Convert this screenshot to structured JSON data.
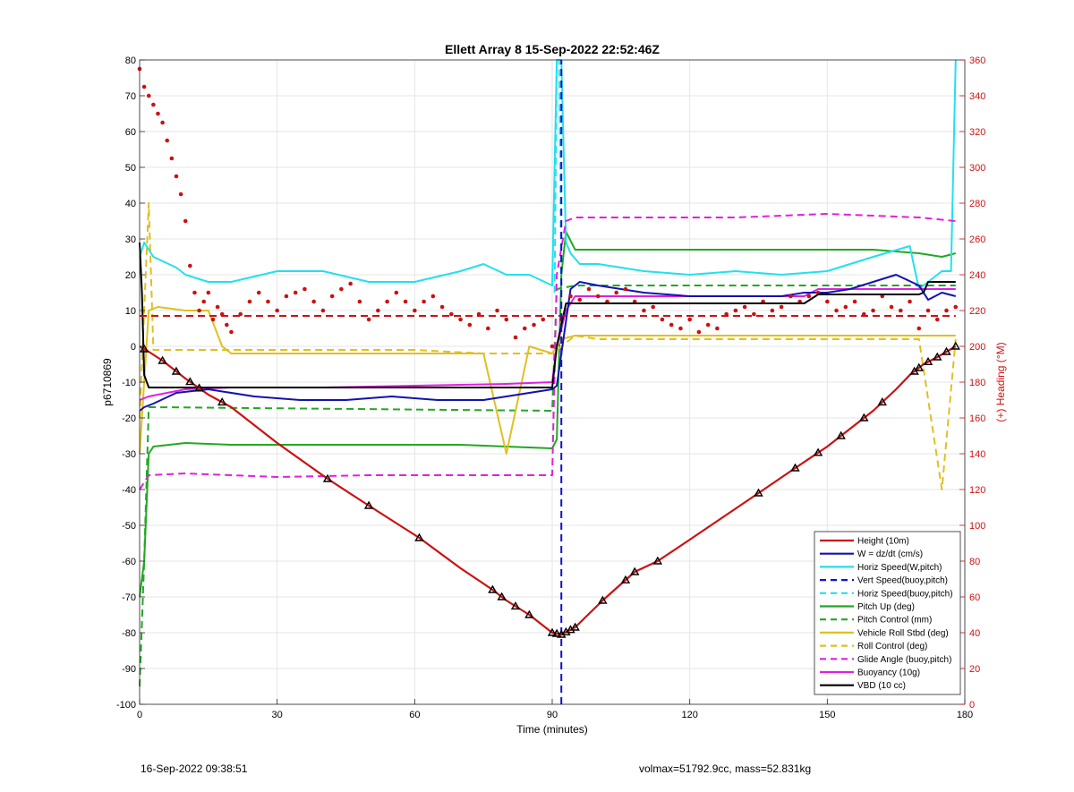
{
  "chart_data": {
    "type": "line",
    "title": "Ellett Array 8 15-Sep-2022 22:52:46Z",
    "xlabel": "Time (minutes)",
    "ylabel": "p6710869",
    "y2label": "(+) Heading (°M)",
    "xlim": [
      0,
      180
    ],
    "ylim": [
      -100,
      80
    ],
    "y2lim": [
      0,
      360
    ],
    "xticks": [
      0,
      30,
      60,
      90,
      120,
      150,
      180
    ],
    "yticks": [
      -100,
      -90,
      -80,
      -70,
      -60,
      -50,
      -40,
      -30,
      -20,
      -10,
      0,
      10,
      20,
      30,
      40,
      50,
      60,
      70,
      80
    ],
    "y2ticks": [
      0,
      20,
      40,
      60,
      80,
      100,
      120,
      140,
      160,
      180,
      200,
      220,
      240,
      260,
      280,
      300,
      320,
      340,
      360
    ],
    "grid": true,
    "legend_position": "bottom-right",
    "series": [
      {
        "name": "Height (10m)",
        "color": "#cc1111",
        "style": "solid",
        "axis": "left",
        "x": [
          0,
          2,
          5,
          10,
          15,
          20,
          30,
          41,
          50,
          61,
          70,
          77,
          80,
          85,
          90,
          92,
          95,
          101,
          108,
          113,
          120,
          135,
          143,
          150,
          160,
          165,
          168,
          171,
          174,
          178
        ],
        "y": [
          0,
          -1.5,
          -4,
          -9,
          -13.5,
          -17,
          -27,
          -37,
          -44.5,
          -53.5,
          -62,
          -68,
          -71,
          -75,
          -80,
          -80.5,
          -78.5,
          -71,
          -63,
          -60,
          -54,
          -41,
          -34,
          -28,
          -18,
          -12,
          -8,
          -5,
          -3,
          0
        ]
      },
      {
        "name": "W = dz/dt (cm/s)",
        "color": "#1212b0",
        "style": "solid",
        "axis": "left",
        "x": [
          0,
          1,
          3,
          8,
          15,
          25,
          35,
          45,
          55,
          65,
          75,
          80,
          85,
          90,
          91,
          94,
          96,
          100,
          110,
          120,
          130,
          140,
          145,
          150,
          155,
          160,
          165,
          170,
          172,
          175,
          178
        ],
        "y": [
          -18,
          -17,
          -16,
          -13,
          -12,
          -14,
          -15,
          -15,
          -14,
          -15,
          -15,
          -14,
          -13,
          -12,
          -11,
          16,
          18,
          17,
          15,
          14,
          14,
          14,
          15,
          15,
          16,
          18,
          20,
          17,
          13,
          15,
          14
        ]
      },
      {
        "name": "Horiz Speed(W,pitch)",
        "color": "#22e0ee",
        "style": "solid",
        "axis": "left",
        "x": [
          0,
          1,
          3,
          8,
          10,
          15,
          20,
          30,
          40,
          50,
          60,
          70,
          75,
          80,
          85,
          90,
          91,
          92,
          93,
          94,
          96,
          100,
          110,
          120,
          130,
          140,
          150,
          160,
          168,
          170,
          175,
          177,
          178
        ],
        "y": [
          25,
          29,
          25,
          22,
          20,
          18,
          18,
          21,
          21,
          18,
          18,
          21,
          23,
          20,
          20,
          17,
          80,
          80,
          29,
          26,
          23,
          23,
          21,
          20,
          21,
          20,
          21,
          25,
          28,
          16,
          21,
          21,
          80
        ]
      },
      {
        "name": "Vert Speed(buoy,pitch)",
        "color": "#1212cc",
        "style": "dashed",
        "axis": "left",
        "x": [
          92,
          92
        ],
        "y": [
          -100,
          80
        ]
      },
      {
        "name": "Horiz Speed(buoy,pitch)",
        "color": "#22e0ee",
        "style": "dashed",
        "axis": "left",
        "x": [
          90.5,
          91,
          91.5,
          92
        ],
        "y": [
          15,
          80,
          80,
          15
        ]
      },
      {
        "name": "Pitch Up (deg)",
        "color": "#22a822",
        "style": "solid",
        "axis": "left",
        "x": [
          0,
          1,
          2,
          3,
          10,
          20,
          30,
          40,
          50,
          60,
          70,
          80,
          90,
          91,
          92,
          93,
          95,
          100,
          120,
          140,
          160,
          170,
          175,
          178
        ],
        "y": [
          -70,
          -60,
          -30,
          -28,
          -27,
          -27.5,
          -27.5,
          -27.5,
          -27.5,
          -27.5,
          -27.5,
          -28,
          -28.5,
          -26,
          20,
          32,
          27,
          27,
          27,
          27,
          27,
          26,
          25,
          26
        ]
      },
      {
        "name": "Pitch Control (mm)",
        "color": "#22a822",
        "style": "dashed",
        "axis": "left",
        "x": [
          0,
          1,
          2,
          3,
          90,
          91,
          95,
          178
        ],
        "y": [
          -95,
          -60,
          -17,
          -17,
          -18,
          16,
          17,
          17
        ]
      },
      {
        "name": "Vehicle Roll Stbd (deg)",
        "color": "#e0c020",
        "style": "solid",
        "axis": "left",
        "x": [
          0,
          2,
          4,
          10,
          15,
          18,
          20,
          40,
          70,
          75,
          80,
          85,
          90,
          92,
          95,
          100,
          120,
          140,
          160,
          170,
          175,
          178
        ],
        "y": [
          -30,
          10,
          11,
          10,
          10,
          0,
          -2,
          -2,
          -2,
          -2,
          -30,
          0,
          -2,
          2,
          3,
          3,
          3,
          3,
          3,
          3,
          3,
          3
        ]
      },
      {
        "name": "Roll Control (deg)",
        "color": "#e0c020",
        "style": "dashed",
        "axis": "left",
        "x": [
          0,
          2,
          3,
          20,
          40,
          60,
          75,
          90,
          95,
          100,
          130,
          170,
          175,
          178
        ],
        "y": [
          -20,
          40,
          -1,
          -1,
          -1,
          -1,
          -2,
          -2,
          3,
          2,
          2,
          2,
          -40,
          2
        ]
      },
      {
        "name": "Glide Angle (buoy,pitch)",
        "color": "#e020e0",
        "style": "dashed",
        "axis": "left",
        "x": [
          0,
          2,
          10,
          30,
          50,
          70,
          90,
          91,
          93,
          95,
          110,
          130,
          150,
          170,
          178
        ],
        "y": [
          -40,
          -36,
          -35.5,
          -36.5,
          -36,
          -36,
          -36,
          20,
          35,
          36,
          36,
          36,
          37,
          36,
          35
        ]
      },
      {
        "name": "Buoyancy (10g)",
        "color": "#e020e0",
        "style": "solid",
        "axis": "left",
        "x": [
          0,
          2,
          10,
          20,
          40,
          60,
          80,
          90,
          91,
          93,
          95,
          120,
          145,
          148,
          170,
          178
        ],
        "y": [
          -15,
          -14,
          -12,
          -11.5,
          -11.5,
          -11,
          -10.5,
          -10,
          0,
          10,
          14,
          14,
          14,
          16,
          16,
          16
        ]
      },
      {
        "name": "VBD (10 cc)",
        "color": "#000000",
        "style": "solid",
        "axis": "left",
        "x": [
          0,
          0.5,
          1,
          2,
          90,
          91,
          93,
          95,
          120,
          145,
          148,
          170,
          171,
          172,
          178
        ],
        "y": [
          29,
          15,
          -8,
          -11.5,
          -11.5,
          0,
          12,
          12,
          12,
          12,
          14.5,
          14.5,
          15,
          18,
          18
        ]
      },
      {
        "name": "Heading",
        "color": "#cc1111",
        "style": "dots",
        "axis": "right",
        "x": [
          0,
          1,
          2,
          3,
          4,
          5,
          6,
          7,
          8,
          9,
          10,
          11,
          12,
          13,
          14,
          15,
          16,
          17,
          18,
          19,
          20,
          22,
          24,
          26,
          28,
          30,
          32,
          34,
          36,
          38,
          40,
          42,
          44,
          46,
          48,
          50,
          52,
          54,
          56,
          58,
          60,
          62,
          64,
          66,
          68,
          70,
          72,
          74,
          76,
          78,
          80,
          82,
          84,
          86,
          88,
          90,
          92,
          94,
          96,
          98,
          100,
          102,
          104,
          106,
          108,
          110,
          112,
          114,
          116,
          118,
          120,
          122,
          124,
          126,
          128,
          130,
          132,
          134,
          136,
          138,
          140,
          142,
          144,
          146,
          148,
          150,
          152,
          154,
          156,
          158,
          160,
          162,
          164,
          166,
          168,
          170,
          172,
          174,
          176,
          178
        ],
        "y": [
          355,
          345,
          340,
          335,
          330,
          325,
          315,
          305,
          295,
          285,
          270,
          245,
          230,
          220,
          225,
          230,
          215,
          222,
          218,
          212,
          208,
          218,
          225,
          230,
          225,
          220,
          228,
          230,
          232,
          225,
          220,
          228,
          232,
          235,
          225,
          215,
          220,
          225,
          230,
          225,
          220,
          225,
          228,
          222,
          218,
          215,
          212,
          218,
          210,
          220,
          215,
          205,
          210,
          212,
          215,
          200,
          215,
          228,
          226,
          232,
          228,
          225,
          230,
          232,
          225,
          220,
          222,
          215,
          212,
          210,
          215,
          208,
          212,
          210,
          218,
          220,
          222,
          218,
          225,
          220,
          222,
          228,
          225,
          228,
          230,
          225,
          220,
          222,
          225,
          218,
          220,
          228,
          222,
          220,
          225,
          210,
          220,
          215,
          220,
          222
        ]
      },
      {
        "name": "Heading Control",
        "color": "#cc1111",
        "style": "dashed",
        "axis": "right",
        "x": [
          0,
          178
        ],
        "y": [
          217,
          217
        ]
      }
    ],
    "legend": [
      {
        "label": "Height (10m)",
        "color": "#cc1111",
        "style": "solid"
      },
      {
        "label": "W = dz/dt (cm/s)",
        "color": "#1212b0",
        "style": "solid"
      },
      {
        "label": "Horiz Speed(W,pitch)",
        "color": "#22e0ee",
        "style": "solid"
      },
      {
        "label": "Vert Speed(buoy,pitch)",
        "color": "#1212cc",
        "style": "dashed"
      },
      {
        "label": "Horiz Speed(buoy,pitch)",
        "color": "#22e0ee",
        "style": "dashed"
      },
      {
        "label": "Pitch Up (deg)",
        "color": "#22a822",
        "style": "solid"
      },
      {
        "label": "Pitch Control (mm)",
        "color": "#22a822",
        "style": "dashed"
      },
      {
        "label": "Vehicle Roll Stbd (deg)",
        "color": "#e0c020",
        "style": "solid"
      },
      {
        "label": "Roll Control (deg)",
        "color": "#e0c020",
        "style": "dashed"
      },
      {
        "label": "Glide Angle (buoy,pitch)",
        "color": "#e020e0",
        "style": "dashed"
      },
      {
        "label": "Buoyancy (10g)",
        "color": "#e020e0",
        "style": "solid"
      },
      {
        "label": "VBD (10 cc)",
        "color": "#000000",
        "style": "solid"
      }
    ],
    "height_markers_x": [
      1,
      5,
      8,
      11,
      13,
      18,
      41,
      50,
      61,
      77,
      79,
      82,
      85,
      90,
      91,
      92,
      93,
      94,
      95,
      101,
      106,
      108,
      113,
      135,
      143,
      148,
      153,
      158,
      162,
      169,
      170,
      172,
      174,
      176,
      178
    ]
  },
  "footer": {
    "timestamp": "16-Sep-2022 09:38:51",
    "info": "volmax=51792.9cc, mass=52.831kg"
  }
}
